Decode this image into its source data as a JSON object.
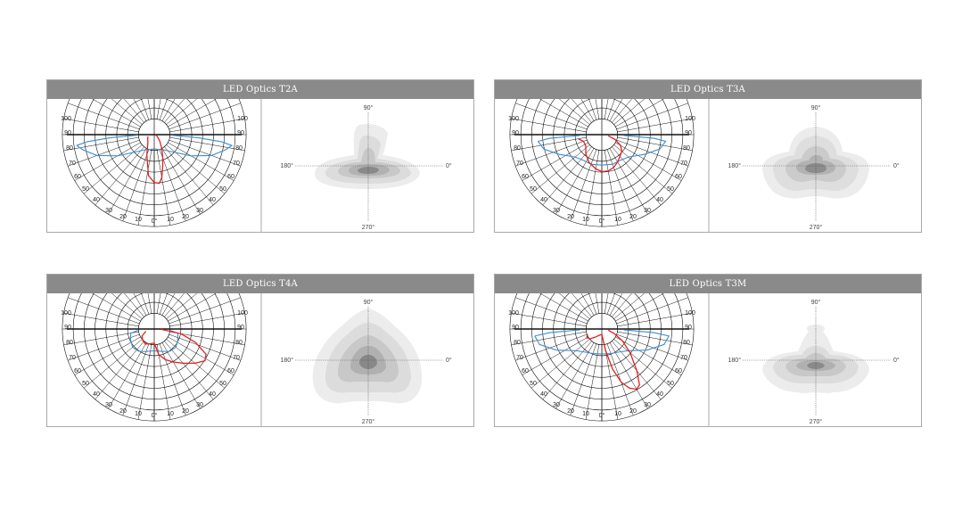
{
  "colors": {
    "header_bg": "#8a8a8a",
    "border": "#a8a8a8",
    "c0_curve": "#3b8ed0",
    "c90_curve": "#e02020"
  },
  "polar_labels_left": [
    "100",
    "90",
    "80",
    "70",
    "60",
    "50",
    "40",
    "30",
    "20",
    "10",
    "0°"
  ],
  "polar_labels_right": [
    "100",
    "90",
    "80",
    "70",
    "60",
    "50",
    "40",
    "30",
    "20",
    "10"
  ],
  "iso_labels": {
    "top": "90°",
    "left": "180°",
    "right": "0°",
    "bottom": "270°"
  },
  "panels": [
    {
      "title": "LED Optics T2A"
    },
    {
      "title": "LED Optics T3A"
    },
    {
      "title": "LED Optics T4A"
    },
    {
      "title": "LED Optics T3M"
    }
  ]
}
